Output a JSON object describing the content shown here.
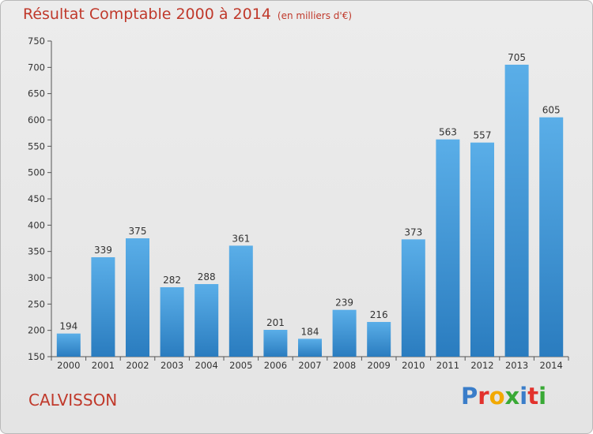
{
  "header": {
    "title": "Résultat Comptable 2000 à 2014",
    "subtitle": "(en milliers d'€)"
  },
  "footer": {
    "place": "CALVISSON",
    "logo_letters": [
      "P",
      "r",
      "o",
      "x",
      "i",
      "t",
      "i"
    ],
    "logo_colors": [
      "#3a7dc9",
      "#e2322d",
      "#f2a900",
      "#39a935",
      "#3a7dc9",
      "#e2322d",
      "#39a935"
    ]
  },
  "chart_data": {
    "type": "bar",
    "title": "Résultat Comptable 2000 à 2014",
    "subtitle": "(en milliers d'€)",
    "xlabel": "",
    "ylabel": "",
    "categories": [
      "2000",
      "2001",
      "2002",
      "2003",
      "2004",
      "2005",
      "2006",
      "2007",
      "2008",
      "2009",
      "2010",
      "2011",
      "2012",
      "2013",
      "2014"
    ],
    "values": [
      194,
      339,
      375,
      282,
      288,
      361,
      201,
      184,
      239,
      216,
      373,
      563,
      557,
      705,
      605
    ],
    "ylim": [
      150,
      750
    ],
    "yticks": [
      150,
      200,
      250,
      300,
      350,
      400,
      450,
      500,
      550,
      600,
      650,
      700,
      750
    ],
    "grid": false,
    "bar_color": "#3d94d6"
  }
}
